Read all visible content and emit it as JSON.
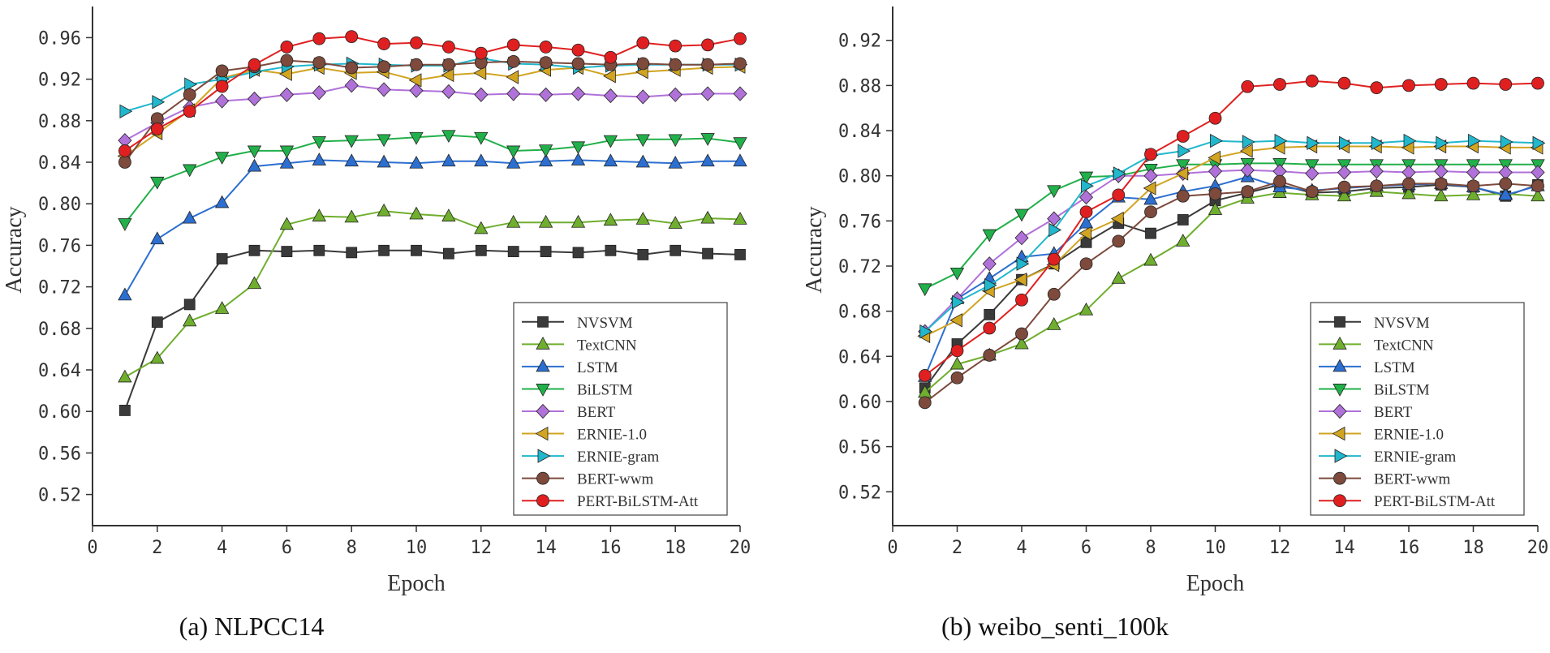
{
  "figure": {
    "captions": [
      "(a) NLPCC14",
      "(b) weibo_senti_100k"
    ]
  },
  "chart_data": [
    {
      "type": "line",
      "title": "(a) NLPCC14",
      "xlabel": "Epoch",
      "ylabel": "Accuracy",
      "xlim": [
        0,
        20
      ],
      "ylim": [
        0.49,
        0.99
      ],
      "xticks": [
        0,
        2,
        4,
        6,
        8,
        10,
        12,
        14,
        16,
        18,
        20
      ],
      "yticks": [
        0.52,
        0.56,
        0.6,
        0.64,
        0.68,
        0.72,
        0.76,
        0.8,
        0.84,
        0.88,
        0.92,
        0.96
      ],
      "xtick_labels": [
        "0",
        "2",
        "4",
        "6",
        "8",
        "10",
        "12",
        "14",
        "16",
        "18",
        "20"
      ],
      "ytick_labels": [
        "0.52",
        "0.56",
        "0.60",
        "0.64",
        "0.68",
        "0.72",
        "0.76",
        "0.80",
        "0.84",
        "0.88",
        "0.92",
        "0.96"
      ],
      "grid": false,
      "legend_position": "bottom-right",
      "x": [
        1,
        2,
        3,
        4,
        5,
        6,
        7,
        8,
        9,
        10,
        11,
        12,
        13,
        14,
        15,
        16,
        17,
        18,
        19,
        20
      ],
      "series": [
        {
          "name": "NVSVM",
          "color": "#3a3a3a",
          "marker": "square",
          "values": [
            0.601,
            0.686,
            0.703,
            0.747,
            0.755,
            0.754,
            0.755,
            0.753,
            0.755,
            0.755,
            0.752,
            0.755,
            0.754,
            0.754,
            0.753,
            0.755,
            0.751,
            0.755,
            0.752,
            0.751
          ]
        },
        {
          "name": "TextCNN",
          "color": "#6fae2e",
          "marker": "triangle-up",
          "values": [
            0.633,
            0.651,
            0.687,
            0.699,
            0.723,
            0.78,
            0.788,
            0.787,
            0.793,
            0.79,
            0.788,
            0.776,
            0.782,
            0.782,
            0.782,
            0.784,
            0.785,
            0.781,
            0.786,
            0.785
          ]
        },
        {
          "name": "LSTM",
          "color": "#2c6fd0",
          "marker": "triangle-up",
          "values": [
            0.712,
            0.766,
            0.786,
            0.801,
            0.836,
            0.839,
            0.842,
            0.841,
            0.84,
            0.839,
            0.841,
            0.841,
            0.839,
            0.841,
            0.842,
            0.841,
            0.84,
            0.839,
            0.841,
            0.841
          ]
        },
        {
          "name": "BiLSTM",
          "color": "#22b04a",
          "marker": "triangle-down",
          "values": [
            0.781,
            0.821,
            0.833,
            0.845,
            0.851,
            0.851,
            0.86,
            0.861,
            0.862,
            0.864,
            0.866,
            0.864,
            0.851,
            0.852,
            0.855,
            0.861,
            0.862,
            0.862,
            0.863,
            0.859
          ]
        },
        {
          "name": "BERT",
          "color": "#b071d9",
          "marker": "diamond",
          "values": [
            0.861,
            0.878,
            0.893,
            0.899,
            0.901,
            0.905,
            0.907,
            0.914,
            0.91,
            0.909,
            0.908,
            0.905,
            0.906,
            0.905,
            0.906,
            0.904,
            0.903,
            0.905,
            0.906,
            0.906
          ]
        },
        {
          "name": "ERNIE-1.0",
          "color": "#d1a422",
          "marker": "triangle-left",
          "values": [
            0.846,
            0.868,
            0.89,
            0.921,
            0.929,
            0.925,
            0.931,
            0.926,
            0.927,
            0.919,
            0.924,
            0.926,
            0.922,
            0.929,
            0.931,
            0.923,
            0.927,
            0.929,
            0.931,
            0.932
          ]
        },
        {
          "name": "ERNIE-gram",
          "color": "#21b7cc",
          "marker": "triangle-right",
          "values": [
            0.889,
            0.898,
            0.915,
            0.92,
            0.927,
            0.932,
            0.934,
            0.935,
            0.934,
            0.933,
            0.933,
            0.94,
            0.935,
            0.934,
            0.931,
            0.933,
            0.934,
            0.934,
            0.934,
            0.934
          ]
        },
        {
          "name": "BERT-wwm",
          "color": "#7d4a3c",
          "marker": "circle",
          "values": [
            0.84,
            0.882,
            0.905,
            0.928,
            0.932,
            0.938,
            0.936,
            0.931,
            0.932,
            0.934,
            0.934,
            0.936,
            0.937,
            0.936,
            0.935,
            0.934,
            0.935,
            0.934,
            0.934,
            0.935
          ]
        },
        {
          "name": "PERT-BiLSTM-Att",
          "color": "#e02020",
          "marker": "circle",
          "values": [
            0.851,
            0.872,
            0.889,
            0.913,
            0.934,
            0.951,
            0.959,
            0.961,
            0.954,
            0.955,
            0.951,
            0.945,
            0.953,
            0.951,
            0.948,
            0.941,
            0.955,
            0.952,
            0.953,
            0.959
          ]
        }
      ]
    },
    {
      "type": "line",
      "title": "(b) weibo_senti_100k",
      "xlabel": "Epoch",
      "ylabel": "Accuracy",
      "xlim": [
        0,
        20
      ],
      "ylim": [
        0.49,
        0.95
      ],
      "xticks": [
        0,
        2,
        4,
        6,
        8,
        10,
        12,
        14,
        16,
        18,
        20
      ],
      "yticks": [
        0.52,
        0.56,
        0.6,
        0.64,
        0.68,
        0.72,
        0.76,
        0.8,
        0.84,
        0.88,
        0.92
      ],
      "xtick_labels": [
        "0",
        "2",
        "4",
        "6",
        "8",
        "10",
        "12",
        "14",
        "16",
        "18",
        "20"
      ],
      "ytick_labels": [
        "0.52",
        "0.56",
        "0.60",
        "0.64",
        "0.68",
        "0.72",
        "0.76",
        "0.80",
        "0.84",
        "0.88",
        "0.92"
      ],
      "grid": false,
      "legend_position": "bottom-right",
      "x": [
        1,
        2,
        3,
        4,
        5,
        6,
        7,
        8,
        9,
        10,
        11,
        12,
        13,
        14,
        15,
        16,
        17,
        18,
        19,
        20
      ],
      "series": [
        {
          "name": "NVSVM",
          "color": "#3a3a3a",
          "marker": "square",
          "values": [
            0.612,
            0.651,
            0.677,
            0.708,
            0.722,
            0.741,
            0.758,
            0.749,
            0.761,
            0.778,
            0.785,
            0.792,
            0.785,
            0.786,
            0.789,
            0.79,
            0.792,
            0.79,
            0.782,
            0.792
          ]
        },
        {
          "name": "TextCNN",
          "color": "#6fae2e",
          "marker": "triangle-up",
          "values": [
            0.608,
            0.633,
            0.641,
            0.651,
            0.668,
            0.681,
            0.709,
            0.725,
            0.742,
            0.77,
            0.78,
            0.785,
            0.783,
            0.782,
            0.786,
            0.784,
            0.782,
            0.783,
            0.784,
            0.782
          ]
        },
        {
          "name": "LSTM",
          "color": "#2c6fd0",
          "marker": "triangle-up",
          "values": [
            0.622,
            0.691,
            0.709,
            0.728,
            0.731,
            0.758,
            0.781,
            0.779,
            0.786,
            0.791,
            0.799,
            0.79,
            0.787,
            0.789,
            0.791,
            0.792,
            0.793,
            0.79,
            0.783,
            0.791
          ]
        },
        {
          "name": "BiLSTM",
          "color": "#22b04a",
          "marker": "triangle-down",
          "values": [
            0.7,
            0.714,
            0.748,
            0.766,
            0.787,
            0.799,
            0.8,
            0.806,
            0.81,
            0.81,
            0.811,
            0.811,
            0.81,
            0.81,
            0.81,
            0.81,
            0.81,
            0.81,
            0.81,
            0.81
          ]
        },
        {
          "name": "BERT",
          "color": "#b071d9",
          "marker": "diamond",
          "values": [
            0.662,
            0.691,
            0.722,
            0.745,
            0.762,
            0.781,
            0.8,
            0.8,
            0.802,
            0.804,
            0.805,
            0.804,
            0.802,
            0.803,
            0.804,
            0.803,
            0.804,
            0.803,
            0.803,
            0.803
          ]
        },
        {
          "name": "ERNIE-1.0",
          "color": "#d1a422",
          "marker": "triangle-left",
          "values": [
            0.658,
            0.672,
            0.698,
            0.708,
            0.721,
            0.749,
            0.762,
            0.789,
            0.802,
            0.816,
            0.822,
            0.825,
            0.826,
            0.826,
            0.826,
            0.825,
            0.826,
            0.826,
            0.825,
            0.825
          ]
        },
        {
          "name": "ERNIE-gram",
          "color": "#21b7cc",
          "marker": "triangle-right",
          "values": [
            0.662,
            0.688,
            0.703,
            0.722,
            0.752,
            0.791,
            0.802,
            0.818,
            0.822,
            0.831,
            0.83,
            0.831,
            0.829,
            0.829,
            0.829,
            0.831,
            0.829,
            0.831,
            0.83,
            0.829
          ]
        },
        {
          "name": "BERT-wwm",
          "color": "#7d4a3c",
          "marker": "circle",
          "values": [
            0.599,
            0.621,
            0.641,
            0.66,
            0.695,
            0.722,
            0.742,
            0.768,
            0.782,
            0.784,
            0.786,
            0.795,
            0.786,
            0.79,
            0.791,
            0.793,
            0.793,
            0.791,
            0.793,
            0.791
          ]
        },
        {
          "name": "PERT-BiLSTM-Att",
          "color": "#e02020",
          "marker": "circle",
          "values": [
            0.623,
            0.645,
            0.665,
            0.69,
            0.726,
            0.768,
            0.783,
            0.819,
            0.835,
            0.851,
            0.879,
            0.881,
            0.884,
            0.882,
            0.878,
            0.88,
            0.881,
            0.882,
            0.881,
            0.882
          ]
        }
      ]
    }
  ]
}
